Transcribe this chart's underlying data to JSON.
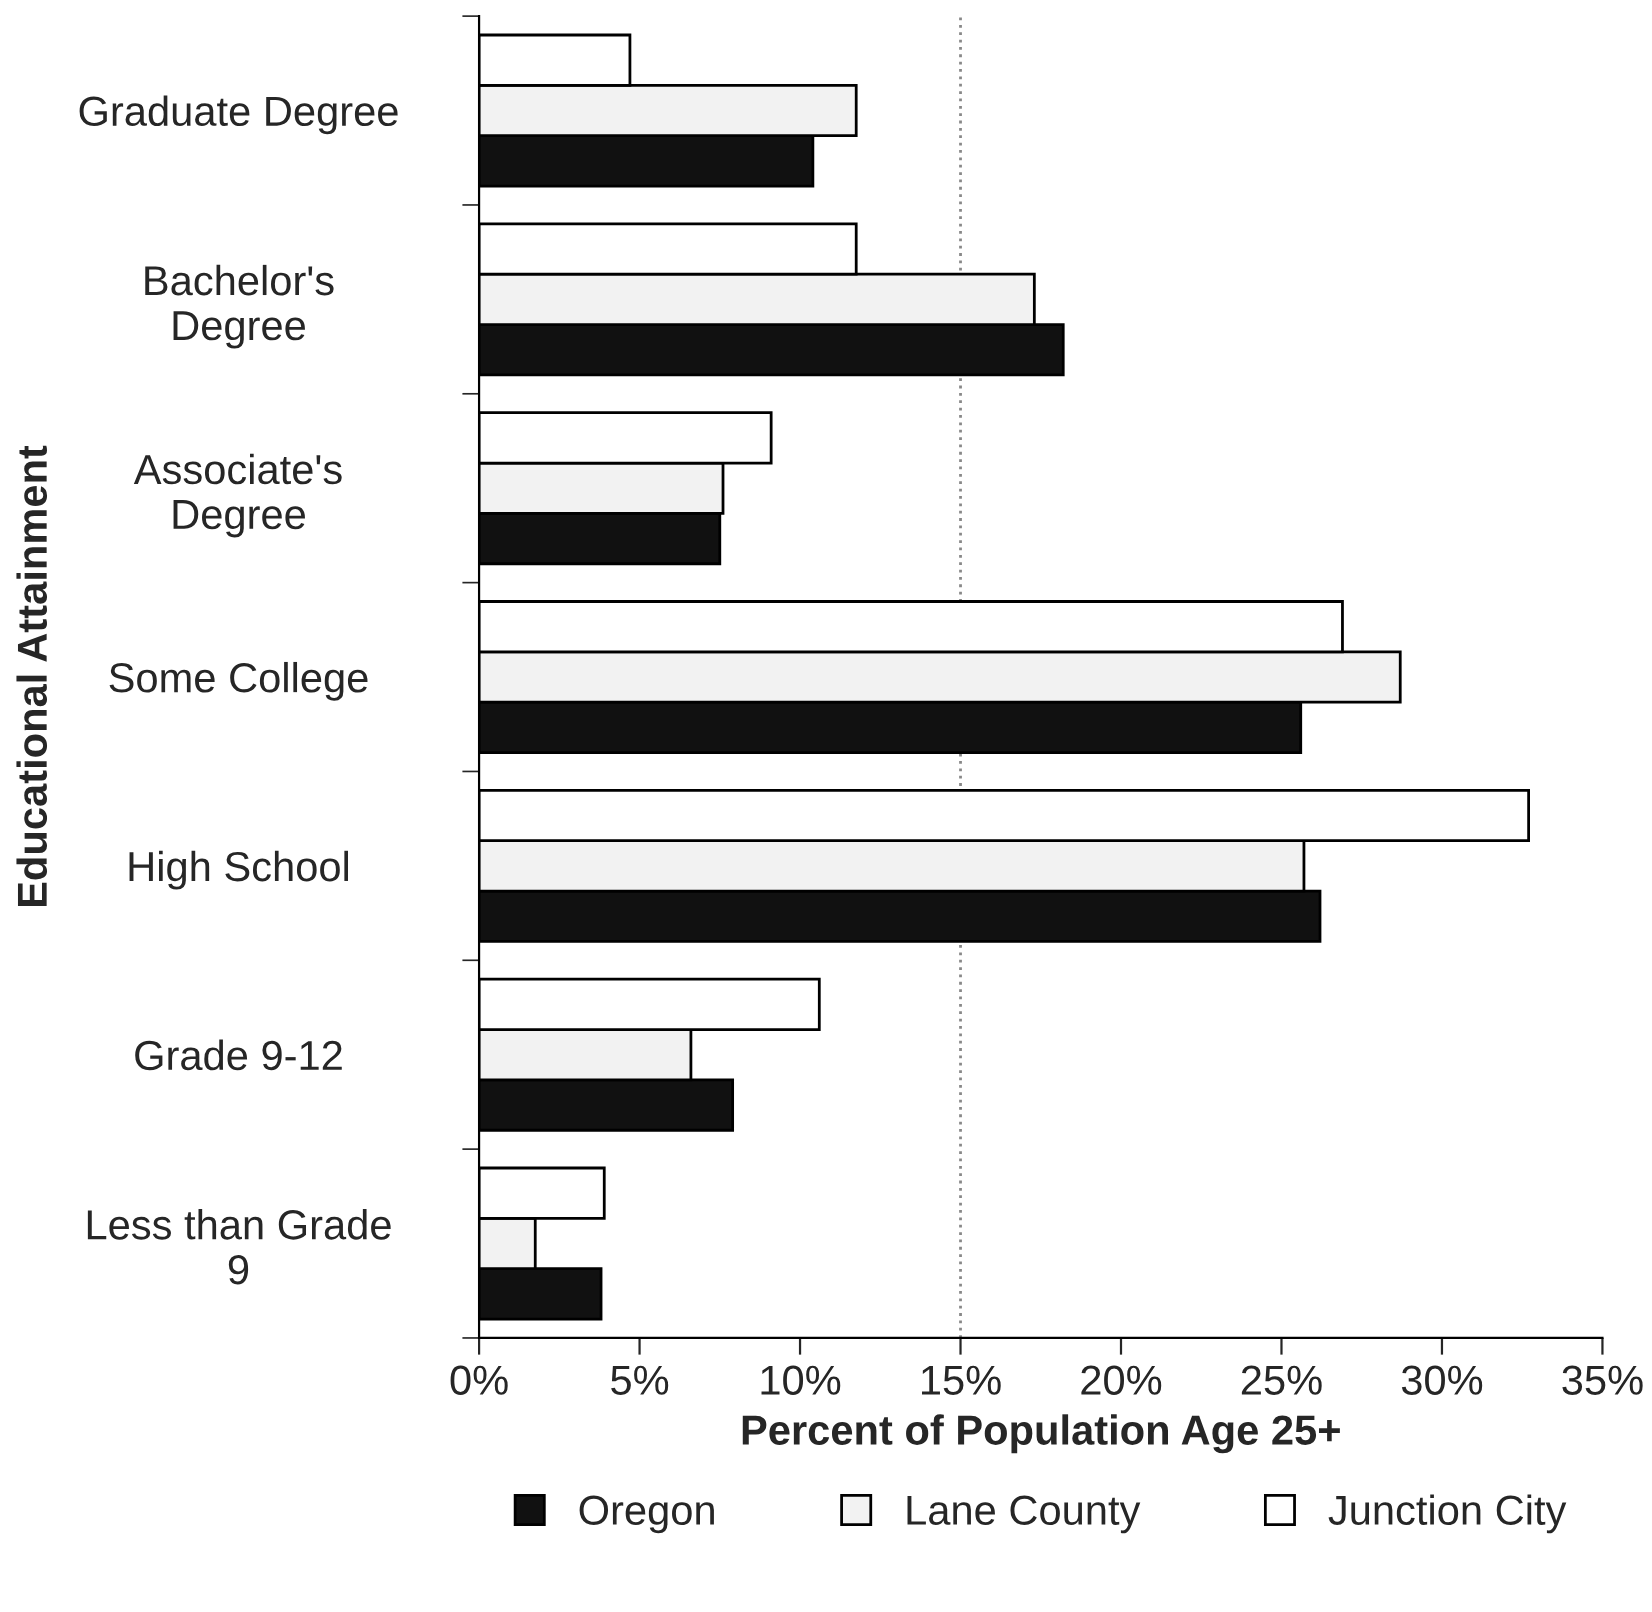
{
  "chart_data": {
    "type": "bar",
    "orientation": "horizontal",
    "xlabel": "Percent of Population Age 25+",
    "ylabel": "Educational Attainment",
    "categories": [
      "Graduate Degree",
      "Bachelor's\nDegree",
      "Associate's\nDegree",
      "Some College",
      "High School",
      "Grade 9-12",
      "Less than Grade\n9"
    ],
    "series": [
      {
        "name": "Oregon",
        "color": "#111111",
        "values": [
          10.4,
          18.2,
          7.5,
          25.6,
          26.2,
          7.9,
          3.8
        ]
      },
      {
        "name": "Lane County",
        "color": "#f2f2f2",
        "values": [
          11.75,
          17.3,
          7.6,
          28.7,
          25.7,
          6.6,
          1.75
        ]
      },
      {
        "name": "Junction City",
        "color": "#ffffff",
        "values": [
          4.7,
          11.75,
          9.1,
          26.9,
          32.7,
          10.6,
          3.9
        ]
      }
    ],
    "xlim": [
      0,
      35
    ],
    "xticks": [
      {
        "value": 0,
        "label": "0%"
      },
      {
        "value": 5,
        "label": "5%"
      },
      {
        "value": 10,
        "label": "10%"
      },
      {
        "value": 15,
        "label": "15%"
      },
      {
        "value": 20,
        "label": "20%"
      },
      {
        "value": 25,
        "label": "25%"
      },
      {
        "value": 30,
        "label": "30%"
      },
      {
        "value": 35,
        "label": "35%"
      }
    ],
    "ref_lines": [
      {
        "axis": "x",
        "value": 15,
        "color": "#888888",
        "line_style": "dotted"
      }
    ],
    "legend": "bottom"
  }
}
